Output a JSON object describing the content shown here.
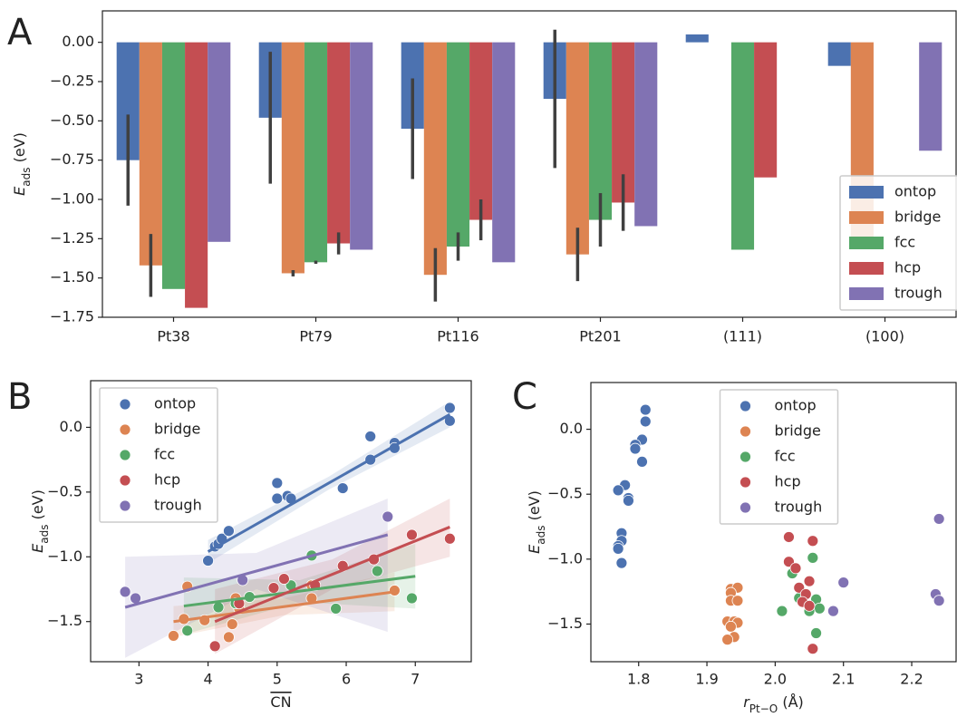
{
  "chart_data": [
    {
      "type": "bar",
      "panel_label": "A",
      "ylabel": {
        "main": "E",
        "sub": "ads",
        "unit": " (eV)"
      },
      "categories": [
        "Pt38",
        "Pt79",
        "Pt116",
        "Pt201",
        "(111)",
        "(100)"
      ],
      "ylim": [
        -1.75,
        0.2
      ],
      "yticks": [
        {
          "value": 0,
          "label": "0.00"
        },
        {
          "value": -0.25,
          "label": "−0.25"
        },
        {
          "value": -0.5,
          "label": "−0.50"
        },
        {
          "value": -0.75,
          "label": "−0.75"
        },
        {
          "value": -1,
          "label": "−1.00"
        },
        {
          "value": -1.25,
          "label": "−1.25"
        },
        {
          "value": -1.5,
          "label": "−1.50"
        },
        {
          "value": -1.75,
          "label": "−1.75"
        }
      ],
      "legend": "lower right",
      "series": [
        {
          "name": "ontop",
          "color": "#4c72b0",
          "values": [
            -0.75,
            -0.48,
            -0.55,
            -0.36,
            0.05,
            -0.15
          ],
          "errors": [
            0.29,
            0.42,
            0.32,
            0.44,
            null,
            null
          ]
        },
        {
          "name": "bridge",
          "color": "#dd8452",
          "values": [
            -1.42,
            -1.47,
            -1.48,
            -1.35,
            null,
            -1.26
          ],
          "errors": [
            0.2,
            0.02,
            0.17,
            0.17,
            null,
            null
          ]
        },
        {
          "name": "fcc",
          "color": "#55a868",
          "values": [
            -1.57,
            -1.4,
            -1.3,
            -1.13,
            -1.32,
            null
          ],
          "errors": [
            null,
            0.01,
            0.09,
            0.17,
            null,
            null
          ]
        },
        {
          "name": "hcp",
          "color": "#c44e52",
          "values": [
            -1.69,
            -1.28,
            -1.13,
            -1.02,
            -0.86,
            null
          ],
          "errors": [
            null,
            0.07,
            0.13,
            0.18,
            null,
            null
          ]
        },
        {
          "name": "trough",
          "color": "#8172b3",
          "values": [
            -1.27,
            -1.32,
            -1.4,
            -1.17,
            null,
            -0.69
          ],
          "errors": [
            null,
            null,
            null,
            null,
            null,
            null
          ]
        }
      ]
    },
    {
      "type": "scatter",
      "panel_label": "B",
      "ylabel": {
        "main": "E",
        "sub": "ads",
        "unit": " (eV)"
      },
      "xlabel": {
        "main": "CN"
      },
      "xlim": [
        2.3,
        7.81
      ],
      "ylim": [
        -1.81,
        0.36
      ],
      "xticks": [
        3,
        4,
        5,
        6,
        7
      ],
      "yticks": [
        {
          "value": 0,
          "label": "0.0"
        },
        {
          "value": -0.5,
          "label": "−0.5"
        },
        {
          "value": -1,
          "label": "−1.0"
        },
        {
          "value": -1.5,
          "label": "−1.5"
        }
      ],
      "legend": "upper left",
      "series": [
        {
          "name": "ontop",
          "color": "#4c72b0",
          "x": [
            4.0,
            4.1,
            4.15,
            4.2,
            4.3,
            5.0,
            5.0,
            5.15,
            5.2,
            5.95,
            6.35,
            6.35,
            6.7,
            6.7,
            7.5,
            7.5
          ],
          "values": [
            -1.03,
            -0.92,
            -0.9,
            -0.86,
            -0.8,
            -0.43,
            -0.55,
            -0.53,
            -0.55,
            -0.47,
            -0.07,
            -0.25,
            -0.12,
            -0.16,
            0.15,
            0.05
          ],
          "fit": {
            "x": [
              4.0,
              5.75,
              7.5
            ],
            "y": [
              -0.96,
              -0.43,
              0.1
            ],
            "lower": [
              -1.05,
              -0.48,
              0.0
            ],
            "upper": [
              -0.87,
              -0.38,
              0.2
            ]
          }
        },
        {
          "name": "bridge",
          "color": "#dd8452",
          "x": [
            3.5,
            3.65,
            3.7,
            3.95,
            4.3,
            4.35,
            4.4,
            4.45,
            5.5,
            5.5,
            6.7
          ],
          "values": [
            -1.61,
            -1.48,
            -1.23,
            -1.49,
            -1.62,
            -1.52,
            -1.32,
            -1.4,
            -1.32,
            -1.22,
            -1.26
          ],
          "fit": {
            "x": [
              3.5,
              5.1,
              6.7
            ],
            "y": [
              -1.5,
              -1.385,
              -1.27
            ],
            "lower": [
              -1.62,
              -1.45,
              -1.42
            ],
            "upper": [
              -1.38,
              -1.32,
              -1.12
            ]
          }
        },
        {
          "name": "fcc",
          "color": "#55a868",
          "x": [
            3.7,
            4.15,
            4.4,
            4.6,
            5.2,
            5.5,
            5.85,
            6.45,
            6.95
          ],
          "values": [
            -1.57,
            -1.39,
            -1.36,
            -1.31,
            -1.22,
            -0.99,
            -1.4,
            -1.11,
            -1.32
          ],
          "fit": {
            "x": [
              3.65,
              5.33,
              7.0
            ],
            "y": [
              -1.38,
              -1.265,
              -1.15
            ],
            "lower": [
              -1.6,
              -1.35,
              -1.4
            ],
            "upper": [
              -1.16,
              -1.18,
              -0.9
            ]
          }
        },
        {
          "name": "hcp",
          "color": "#c44e52",
          "x": [
            4.1,
            4.45,
            4.95,
            5.1,
            5.55,
            5.95,
            6.4,
            6.95,
            7.5
          ],
          "values": [
            -1.69,
            -1.36,
            -1.24,
            -1.17,
            -1.22,
            -1.07,
            -1.02,
            -0.83,
            -0.86
          ],
          "fit": {
            "x": [
              4.1,
              5.8,
              7.5
            ],
            "y": [
              -1.5,
              -1.135,
              -0.77
            ],
            "lower": [
              -1.75,
              -1.25,
              -1.0
            ],
            "upper": [
              -1.25,
              -1.02,
              -0.55
            ]
          }
        },
        {
          "name": "trough",
          "color": "#8172b3",
          "x": [
            2.8,
            2.95,
            4.5,
            6.6
          ],
          "values": [
            -1.27,
            -1.32,
            -1.18,
            -0.69
          ],
          "fit": {
            "x": [
              2.8,
              4.7,
              6.6
            ],
            "y": [
              -1.39,
              -1.11,
              -0.83
            ],
            "lower": [
              -1.78,
              -1.25,
              -1.58
            ],
            "upper": [
              -1.0,
              -0.97,
              -0.55
            ]
          }
        }
      ]
    },
    {
      "type": "scatter",
      "panel_label": "C",
      "ylabel": {
        "main": "E",
        "sub": "ads",
        "unit": " (eV)"
      },
      "xlabel": {
        "main": "r",
        "sub": "Pt−O",
        "unit": " (Å)"
      },
      "xlim": [
        1.73,
        2.265
      ],
      "ylim": [
        -1.79,
        0.36
      ],
      "xticks": [
        1.8,
        1.9,
        {
          "value": 2,
          "label": "2.0"
        },
        2.1,
        2.2
      ],
      "yticks": [
        {
          "value": 0,
          "label": "0.0"
        },
        {
          "value": -0.5,
          "label": "−0.5"
        },
        {
          "value": -1,
          "label": "−1.0"
        },
        {
          "value": -1.5,
          "label": "−1.5"
        }
      ],
      "legend": "upper center",
      "series": [
        {
          "name": "ontop",
          "color": "#4c72b0",
          "x": [
            1.81,
            1.81,
            1.805,
            1.795,
            1.795,
            1.805,
            1.78,
            1.77,
            1.785,
            1.785,
            1.775,
            1.775,
            1.77,
            1.77,
            1.775
          ],
          "values": [
            0.15,
            0.06,
            -0.08,
            -0.12,
            -0.15,
            -0.25,
            -0.43,
            -0.47,
            -0.53,
            -0.55,
            -0.8,
            -0.86,
            -0.9,
            -0.92,
            -1.03
          ]
        },
        {
          "name": "bridge",
          "color": "#dd8452",
          "x": [
            1.935,
            1.945,
            1.935,
            1.935,
            1.945,
            1.93,
            1.94,
            1.945,
            1.935,
            1.94,
            1.93
          ],
          "values": [
            -1.23,
            -1.22,
            -1.26,
            -1.32,
            -1.32,
            -1.48,
            -1.48,
            -1.49,
            -1.52,
            -1.6,
            -1.62
          ]
        },
        {
          "name": "fcc",
          "color": "#55a868",
          "x": [
            2.055,
            2.025,
            2.035,
            2.04,
            2.035,
            2.06,
            2.065,
            2.01,
            2.05,
            2.06
          ],
          "values": [
            -0.99,
            -1.11,
            -1.22,
            -1.26,
            -1.3,
            -1.31,
            -1.38,
            -1.4,
            -1.4,
            -1.57
          ]
        },
        {
          "name": "hcp",
          "color": "#c44e52",
          "x": [
            2.02,
            2.055,
            2.02,
            2.03,
            2.05,
            2.035,
            2.045,
            2.04,
            2.05,
            2.055
          ],
          "values": [
            -0.83,
            -0.86,
            -1.02,
            -1.07,
            -1.17,
            -1.22,
            -1.27,
            -1.33,
            -1.36,
            -1.69
          ]
        },
        {
          "name": "trough",
          "color": "#8172b3",
          "x": [
            2.24,
            2.1,
            2.235,
            2.24,
            2.085
          ],
          "values": [
            -0.69,
            -1.18,
            -1.27,
            -1.32,
            -1.4
          ]
        }
      ]
    }
  ]
}
